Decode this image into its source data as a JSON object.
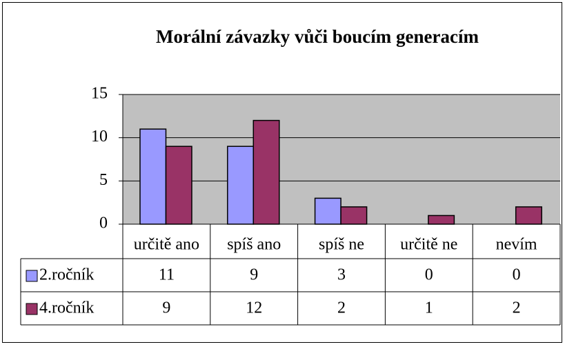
{
  "chart_data": {
    "type": "bar",
    "title": "Morální závazky vůči boucím generacím",
    "categories": [
      "určitě ano",
      "spíš ano",
      "spíš ne",
      "určitě ne",
      "nevím"
    ],
    "series": [
      {
        "name": "2.ročník",
        "color": "#9999ff",
        "values": [
          11,
          9,
          3,
          0,
          0
        ]
      },
      {
        "name": "4.ročník",
        "color": "#993366",
        "values": [
          9,
          12,
          2,
          1,
          2
        ]
      }
    ],
    "ylim": [
      0,
      15
    ],
    "yticks": [
      0,
      5,
      10,
      15
    ],
    "grid": true,
    "plot_background": "#c0c0c0"
  }
}
